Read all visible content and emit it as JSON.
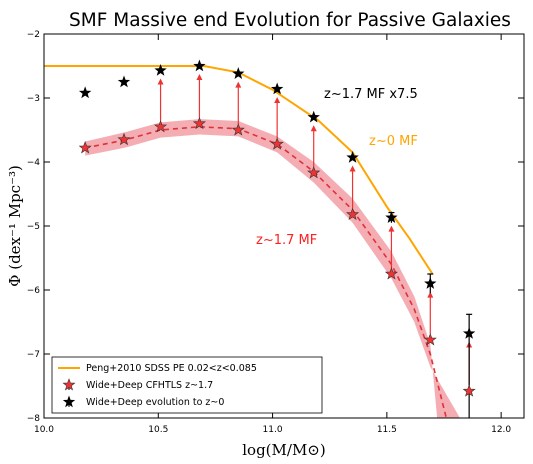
{
  "chart_data": {
    "type": "scatter",
    "title": "SMF Massive end Evolution for Passive Galaxies",
    "xlabel": "log(M/M⊙)",
    "ylabel": "Φ (dex⁻¹ Mpc⁻³)",
    "xlim": [
      10.0,
      12.1
    ],
    "ylim": [
      -8,
      -2
    ],
    "xticks": [
      "10.0",
      "10.5",
      "11.0",
      "11.5",
      "12.0"
    ],
    "yticks": [
      "−8",
      "−7",
      "−6",
      "−5",
      "−4",
      "−3",
      "−2"
    ],
    "x_tick_values": [
      10.0,
      10.5,
      11.0,
      11.5,
      12.0
    ],
    "y_tick_values": [
      -8,
      -7,
      -6,
      -5,
      -4,
      -3,
      -2
    ],
    "grid": false,
    "legend_position": "bottom-left",
    "legend": [
      "Peng+2010 SDSS PE 0.02<z<0.085",
      "Wide+Deep CFHTLS z~1.7",
      "Wide+Deep evolution to z~0"
    ],
    "annotations": [
      {
        "text": "z~1.7 MF x7.5",
        "color": "#000000"
      },
      {
        "text": "z~0 MF",
        "color": "#ffa500"
      },
      {
        "text": "z~1.7 MF",
        "color": "#ff2020"
      }
    ],
    "colors": {
      "peng": "#ffa500",
      "z17": "#ee3333",
      "band": "#f2a0a6",
      "z0": "#000000"
    },
    "series": [
      {
        "name": "Peng+2010 SDSS PE 0.02<z<0.085",
        "kind": "line",
        "x": [
          10.0,
          10.3,
          10.5,
          10.7,
          10.85,
          11.0,
          11.2,
          11.35,
          11.5,
          11.6,
          11.7
        ],
        "y": [
          -2.5,
          -2.5,
          -2.5,
          -2.5,
          -2.6,
          -2.87,
          -3.35,
          -3.85,
          -4.7,
          -5.2,
          -5.75
        ]
      },
      {
        "name": "Wide+Deep CFHTLS z~1.7",
        "kind": "points",
        "x": [
          10.18,
          10.35,
          10.51,
          10.68,
          10.85,
          11.02,
          11.18,
          11.35,
          11.52,
          11.69,
          11.86
        ],
        "y": [
          -3.78,
          -3.65,
          -3.45,
          -3.4,
          -3.5,
          -3.72,
          -4.17,
          -4.82,
          -5.75,
          -6.78,
          -7.58
        ]
      },
      {
        "name": "Wide+Deep evolution to z~0",
        "kind": "points",
        "x": [
          10.18,
          10.35,
          10.51,
          10.68,
          10.85,
          11.02,
          11.18,
          11.35,
          11.52,
          11.69,
          11.86
        ],
        "y": [
          -2.92,
          -2.75,
          -2.57,
          -2.5,
          -2.62,
          -2.86,
          -3.3,
          -3.93,
          -4.87,
          -5.9,
          -6.68
        ],
        "err_low": [
          0,
          0,
          0,
          0,
          0,
          0,
          0,
          0,
          0.08,
          0.15,
          1.4
        ],
        "err_high": [
          0,
          0,
          0,
          0,
          0,
          0,
          0,
          0,
          0.08,
          0.15,
          0.3
        ]
      },
      {
        "name": "z~1.7 MF fit",
        "kind": "dashed-line",
        "x": [
          10.18,
          10.35,
          10.51,
          10.68,
          10.85,
          11.02,
          11.18,
          11.35,
          11.52,
          11.62,
          11.69,
          11.76
        ],
        "y": [
          -3.78,
          -3.66,
          -3.5,
          -3.45,
          -3.48,
          -3.72,
          -4.15,
          -4.75,
          -5.6,
          -6.3,
          -7.0,
          -8.0
        ]
      },
      {
        "name": "z~1.7 MF band upper",
        "kind": "band-upper",
        "x": [
          10.18,
          10.35,
          10.51,
          10.68,
          10.85,
          11.02,
          11.18,
          11.35,
          11.52,
          11.62,
          11.69,
          11.72
        ],
        "y": [
          -3.68,
          -3.54,
          -3.38,
          -3.33,
          -3.36,
          -3.6,
          -4.0,
          -4.57,
          -5.4,
          -6.1,
          -6.85,
          -8.0
        ]
      },
      {
        "name": "z~1.7 MF band lower",
        "kind": "band-lower",
        "x": [
          10.18,
          10.35,
          10.51,
          10.68,
          10.85,
          11.02,
          11.18,
          11.35,
          11.52,
          11.62,
          11.69,
          11.82
        ],
        "y": [
          -3.9,
          -3.78,
          -3.62,
          -3.57,
          -3.6,
          -3.85,
          -4.32,
          -4.95,
          -5.82,
          -6.5,
          -7.2,
          -8.0
        ]
      }
    ]
  }
}
